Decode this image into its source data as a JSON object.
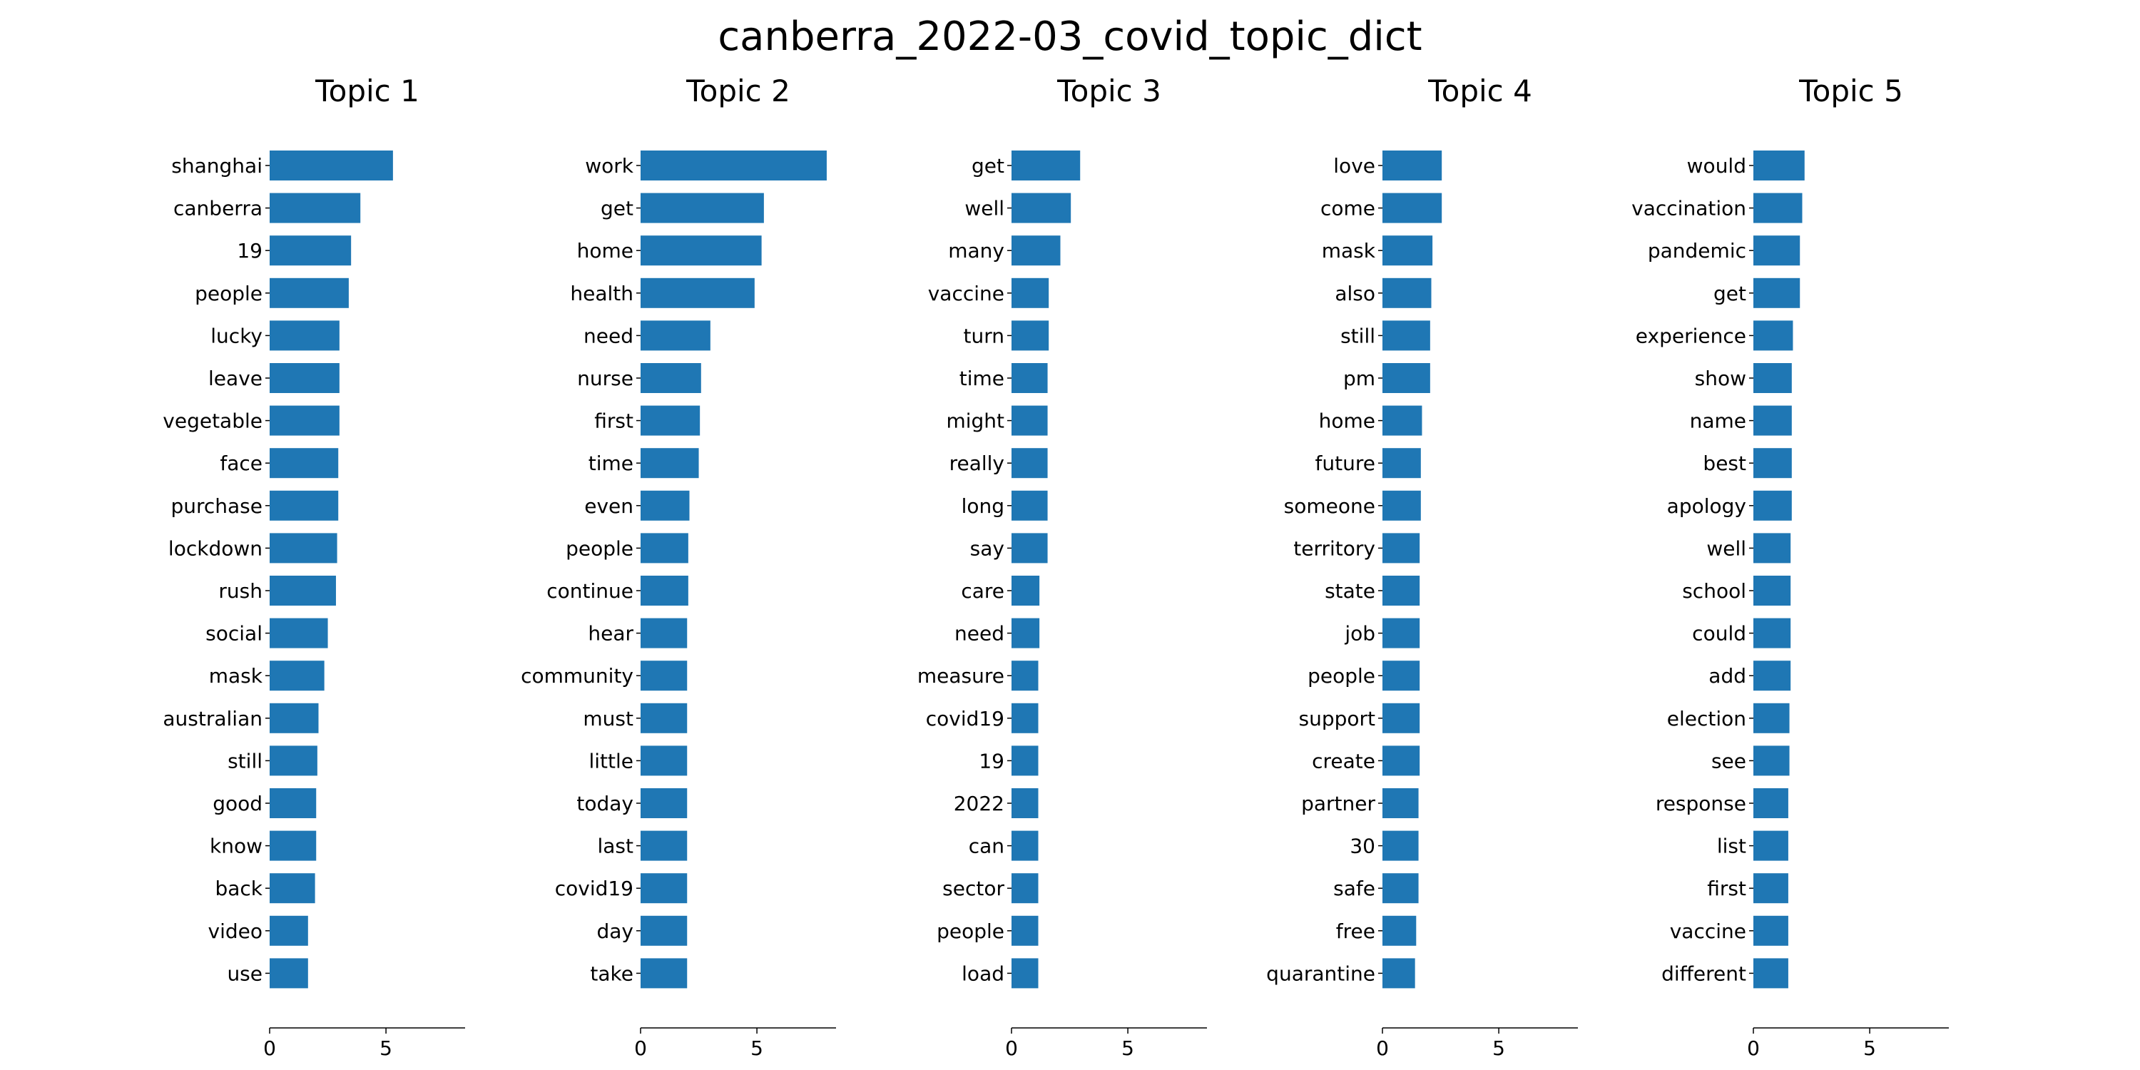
{
  "title": "canberra_2022-03_covid_topic_dict",
  "bar_color": "#1f77b4",
  "chart_data": [
    {
      "type": "bar",
      "orientation": "horizontal",
      "title": "Topic 1",
      "xlim": [
        0,
        8.4
      ],
      "xticks": [
        0,
        5
      ],
      "categories": [
        "shanghai",
        "canberra",
        "19",
        "people",
        "lucky",
        "leave",
        "vegetable",
        "face",
        "purchase",
        "lockdown",
        "rush",
        "social",
        "mask",
        "australian",
        "still",
        "good",
        "know",
        "back",
        "video",
        "use"
      ],
      "values": [
        5.3,
        3.9,
        3.5,
        3.4,
        3.0,
        3.0,
        3.0,
        2.95,
        2.95,
        2.9,
        2.85,
        2.5,
        2.35,
        2.1,
        2.05,
        2.0,
        2.0,
        1.95,
        1.65,
        1.65
      ]
    },
    {
      "type": "bar",
      "orientation": "horizontal",
      "title": "Topic 2",
      "xlim": [
        0,
        8.4
      ],
      "xticks": [
        0,
        5
      ],
      "categories": [
        "work",
        "get",
        "home",
        "health",
        "need",
        "nurse",
        "first",
        "time",
        "even",
        "people",
        "continue",
        "hear",
        "community",
        "must",
        "little",
        "today",
        "last",
        "covid19",
        "day",
        "take"
      ],
      "values": [
        8.0,
        5.3,
        5.2,
        4.9,
        3.0,
        2.6,
        2.55,
        2.5,
        2.1,
        2.05,
        2.05,
        2.0,
        2.0,
        2.0,
        2.0,
        2.0,
        2.0,
        2.0,
        2.0,
        2.0
      ]
    },
    {
      "type": "bar",
      "orientation": "horizontal",
      "title": "Topic 3",
      "xlim": [
        0,
        8.4
      ],
      "xticks": [
        0,
        5
      ],
      "categories": [
        "get",
        "well",
        "many",
        "vaccine",
        "turn",
        "time",
        "might",
        "really",
        "long",
        "say",
        "care",
        "need",
        "measure",
        "covid19",
        "19",
        "2022",
        "can",
        "sector",
        "people",
        "load"
      ],
      "values": [
        2.95,
        2.55,
        2.1,
        1.6,
        1.6,
        1.55,
        1.55,
        1.55,
        1.55,
        1.55,
        1.2,
        1.2,
        1.15,
        1.15,
        1.15,
        1.15,
        1.15,
        1.15,
        1.15,
        1.15
      ]
    },
    {
      "type": "bar",
      "orientation": "horizontal",
      "title": "Topic 4",
      "xlim": [
        0,
        8.4
      ],
      "xticks": [
        0,
        5
      ],
      "categories": [
        "love",
        "come",
        "mask",
        "also",
        "still",
        "pm",
        "home",
        "future",
        "someone",
        "territory",
        "state",
        "job",
        "people",
        "support",
        "create",
        "partner",
        "30",
        "safe",
        "free",
        "quarantine"
      ],
      "values": [
        2.55,
        2.55,
        2.15,
        2.1,
        2.05,
        2.05,
        1.7,
        1.65,
        1.65,
        1.6,
        1.6,
        1.6,
        1.6,
        1.6,
        1.6,
        1.55,
        1.55,
        1.55,
        1.45,
        1.4
      ]
    },
    {
      "type": "bar",
      "orientation": "horizontal",
      "title": "Topic 5",
      "xlim": [
        0,
        8.4
      ],
      "xticks": [
        0,
        5
      ],
      "categories": [
        "would",
        "vaccination",
        "pandemic",
        "get",
        "experience",
        "show",
        "name",
        "best",
        "apology",
        "well",
        "school",
        "could",
        "add",
        "election",
        "see",
        "response",
        "list",
        "first",
        "vaccine",
        "different"
      ],
      "values": [
        2.2,
        2.1,
        2.0,
        2.0,
        1.7,
        1.65,
        1.65,
        1.65,
        1.65,
        1.6,
        1.6,
        1.6,
        1.6,
        1.55,
        1.55,
        1.5,
        1.5,
        1.5,
        1.5,
        1.5
      ]
    }
  ]
}
